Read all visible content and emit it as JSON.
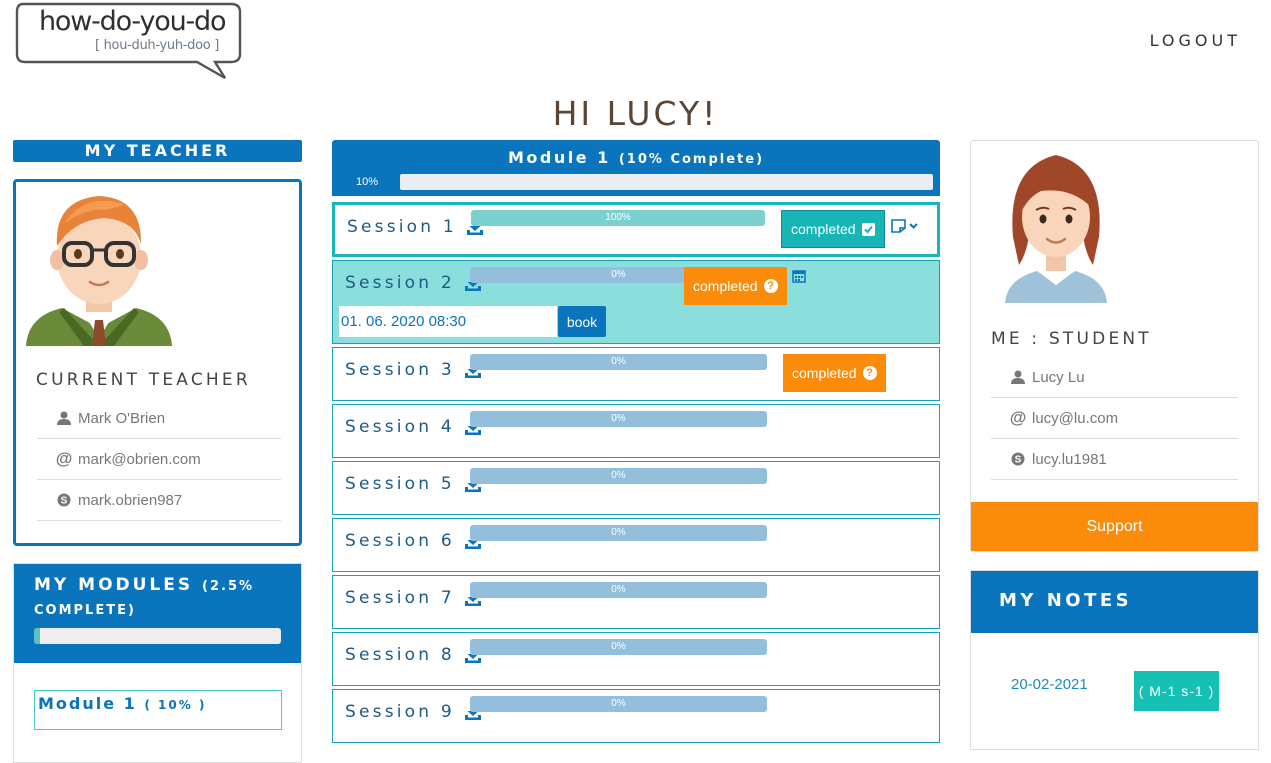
{
  "logo": {
    "main": "how-do-you-do",
    "sub": "[ hou-duh-yuh-doo ]"
  },
  "header": {
    "logout": "LOGOUT",
    "greeting": "HI LUCY!"
  },
  "teacher": {
    "heading": "MY TEACHER",
    "card_title": "CURRENT TEACHER",
    "name": "Mark O'Brien",
    "email": "mark@obrien.com",
    "skype": "mark.obrien987"
  },
  "modules": {
    "title": "MY MODULES",
    "complete": "(2.5% COMPLETE)",
    "progress": 0.025,
    "items": [
      {
        "label": "Module 1",
        "percent": "( 10% )"
      }
    ]
  },
  "current_module": {
    "title": "Module 1",
    "complete": "(10% Complete)",
    "progress_label": "10%",
    "progress": 0.1
  },
  "sessions": [
    {
      "name": "Session 1",
      "progress": "100%",
      "status": "completed",
      "status_style": "done"
    },
    {
      "name": "Session 2",
      "progress": "0%",
      "status": "completed",
      "status_style": "orange",
      "date": "01. 06. 2020 08:30",
      "book": "book"
    },
    {
      "name": "Session 3",
      "progress": "0%",
      "status": "completed",
      "status_style": "orange"
    },
    {
      "name": "Session 4",
      "progress": "0%"
    },
    {
      "name": "Session 5",
      "progress": "0%"
    },
    {
      "name": "Session 6",
      "progress": "0%"
    },
    {
      "name": "Session 7",
      "progress": "0%"
    },
    {
      "name": "Session 8",
      "progress": "0%"
    },
    {
      "name": "Session 9",
      "progress": "0%"
    }
  ],
  "student": {
    "title": "ME : STUDENT",
    "name": "Lucy Lu",
    "email": "lucy@lu.com",
    "skype": "lucy.lu1981",
    "support": "Support"
  },
  "notes": {
    "title": "MY NOTES",
    "date": "20-02-2021",
    "tag": "( M-1 s-1 )"
  },
  "colors": {
    "primary": "#0a74bd",
    "teal": "#17b5b5",
    "orange": "#fb8c0b"
  }
}
